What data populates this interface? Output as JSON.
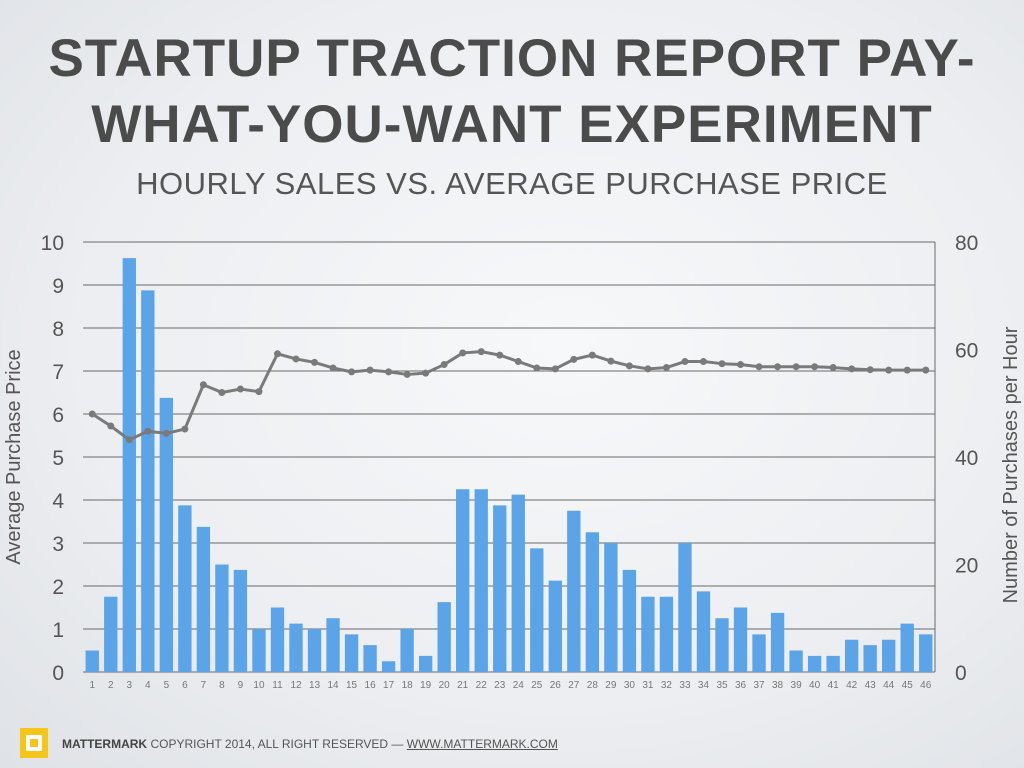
{
  "title_line1": "STARTUP TRACTION REPORT PAY-",
  "title_line2": "WHAT-YOU-WANT EXPERIMENT",
  "subtitle": "HOURLY SALES  VS.  AVERAGE PURCHASE PRICE",
  "chart_data": {
    "type": "bar+line",
    "title": "STARTUP TRACTION REPORT PAY-WHAT-YOU-WANT EXPERIMENT",
    "subtitle": "HOURLY SALES  VS.  AVERAGE PURCHASE PRICE",
    "ylabel": "Average Purchase Price",
    "y2label": "Number of Purchases per Hour",
    "ylim": [
      0,
      10
    ],
    "y2lim": [
      0,
      80
    ],
    "yticks": [
      "0",
      "1",
      "2",
      "3",
      "4",
      "5",
      "6",
      "7",
      "8",
      "9",
      "10"
    ],
    "y2ticks": [
      "0",
      "20",
      "40",
      "60",
      "80"
    ],
    "grid": true,
    "categories": [
      "1",
      "2",
      "3",
      "4",
      "5",
      "6",
      "7",
      "8",
      "9",
      "10",
      "11",
      "12",
      "13",
      "14",
      "15",
      "16",
      "17",
      "18",
      "19",
      "20",
      "21",
      "22",
      "23",
      "24",
      "25",
      "26",
      "27",
      "28",
      "29",
      "30",
      "31",
      "32",
      "33",
      "34",
      "35",
      "36",
      "37",
      "38",
      "39",
      "40",
      "41",
      "42",
      "43",
      "44",
      "45",
      "46"
    ],
    "series": [
      {
        "type": "bar",
        "axis": "right",
        "color": "#5ba4e8",
        "values": [
          4,
          14,
          77,
          71,
          51,
          31,
          27,
          20,
          19,
          8,
          12,
          9,
          8,
          10,
          7,
          5,
          2,
          8,
          3,
          13,
          34,
          34,
          31,
          33,
          23,
          17,
          30,
          26,
          24,
          19,
          14,
          14,
          24,
          15,
          10,
          12,
          7,
          11,
          4,
          3,
          3,
          6,
          5,
          6,
          9,
          7
        ]
      },
      {
        "type": "line",
        "axis": "left",
        "color": "#7a7a7a",
        "values": [
          6.0,
          5.72,
          5.4,
          5.6,
          5.55,
          5.65,
          6.68,
          6.5,
          6.58,
          6.52,
          7.4,
          7.28,
          7.2,
          7.07,
          6.98,
          7.02,
          6.98,
          6.92,
          6.95,
          7.15,
          7.42,
          7.45,
          7.37,
          7.22,
          7.07,
          7.05,
          7.27,
          7.37,
          7.23,
          7.12,
          7.05,
          7.08,
          7.22,
          7.22,
          7.17,
          7.15,
          7.1,
          7.1,
          7.1,
          7.1,
          7.08,
          7.05,
          7.03,
          7.02,
          7.02,
          7.02
        ]
      }
    ]
  },
  "footer": {
    "brand": "MATTERMARK",
    "copyright": "COPYRIGHT 2014, ALL RIGHT RESERVED —",
    "url": "WWW.MATTERMARK.COM",
    "logo_color": "#f5c518"
  }
}
